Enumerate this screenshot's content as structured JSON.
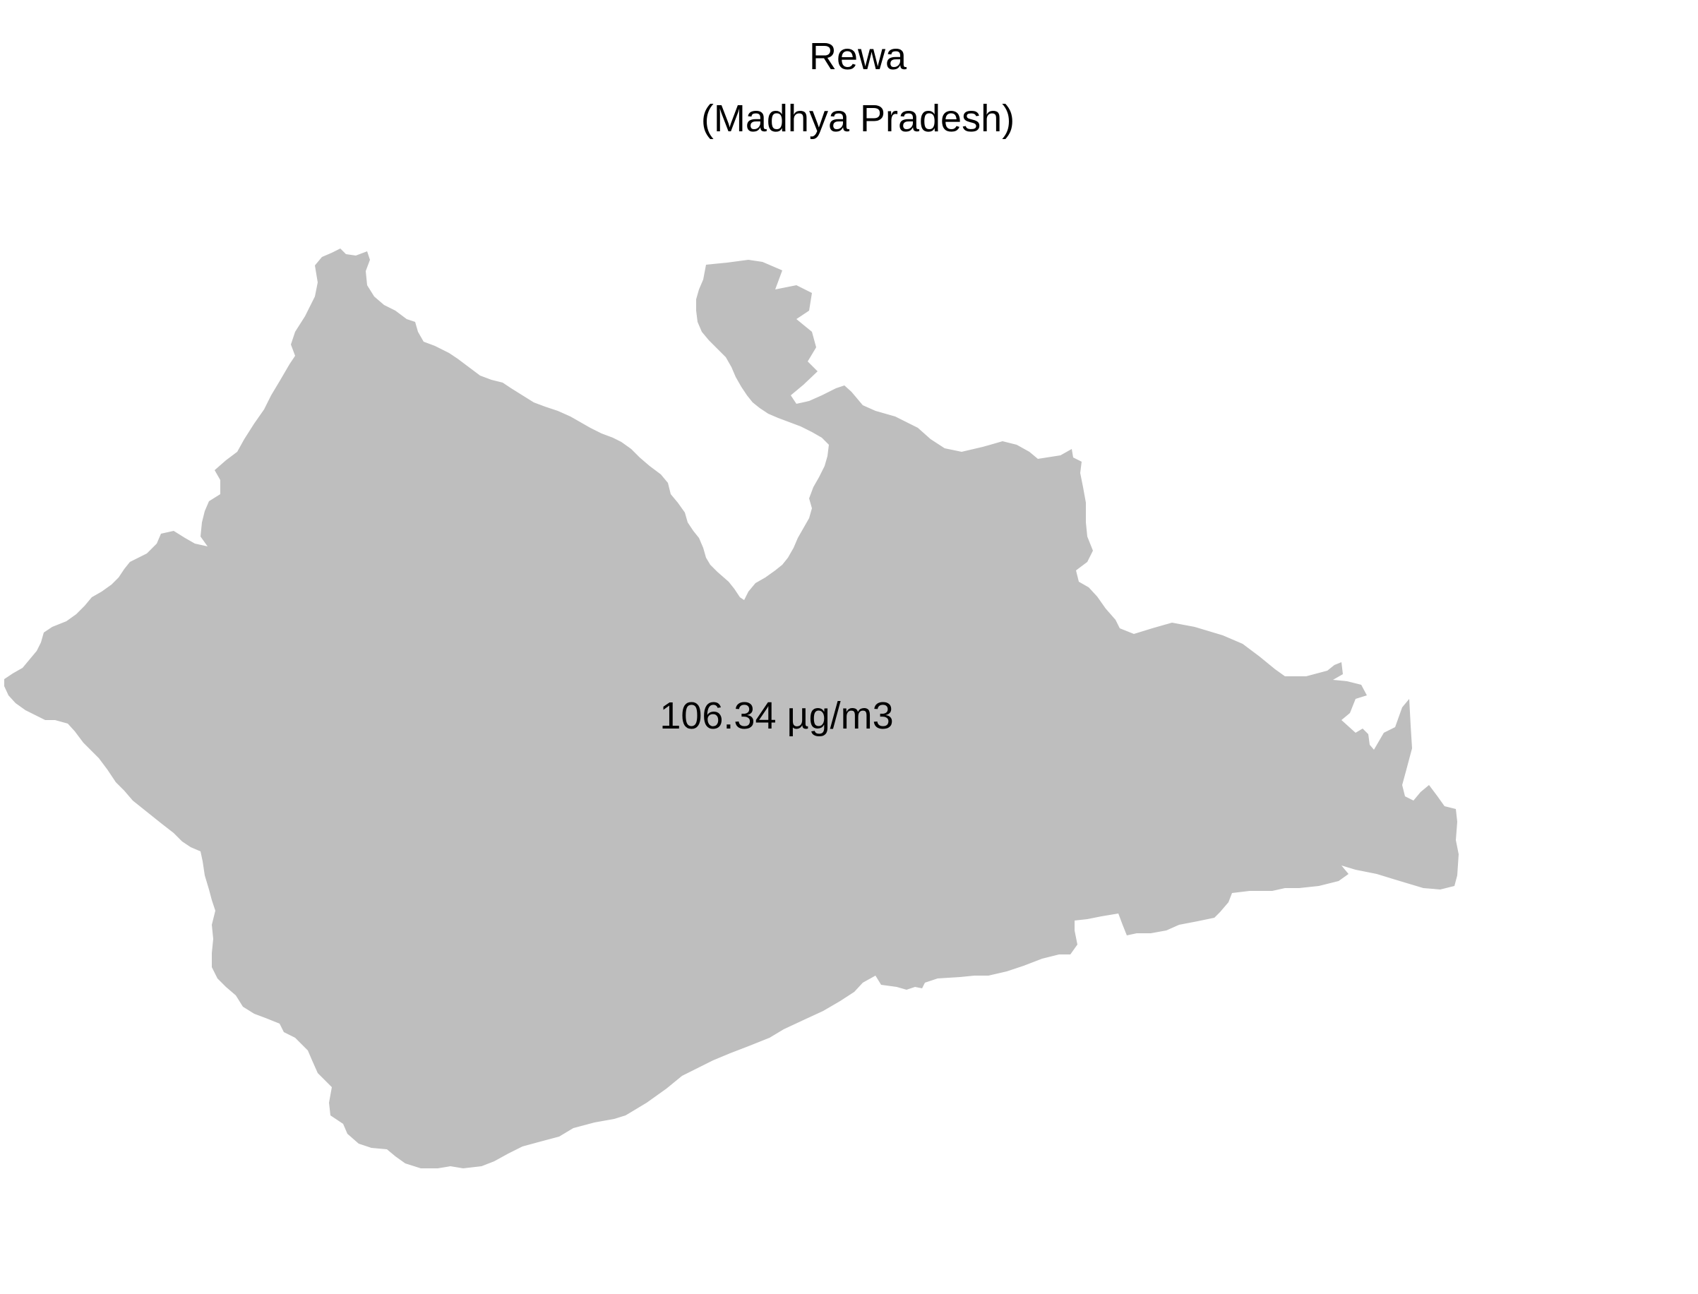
{
  "map": {
    "title": "Rewa",
    "subtitle": "(Madhya Pradesh)",
    "region_name": "Rewa",
    "value_label": "106.34 µg/m3",
    "fill_color": "#bebebe",
    "background_color": "#ffffff"
  }
}
